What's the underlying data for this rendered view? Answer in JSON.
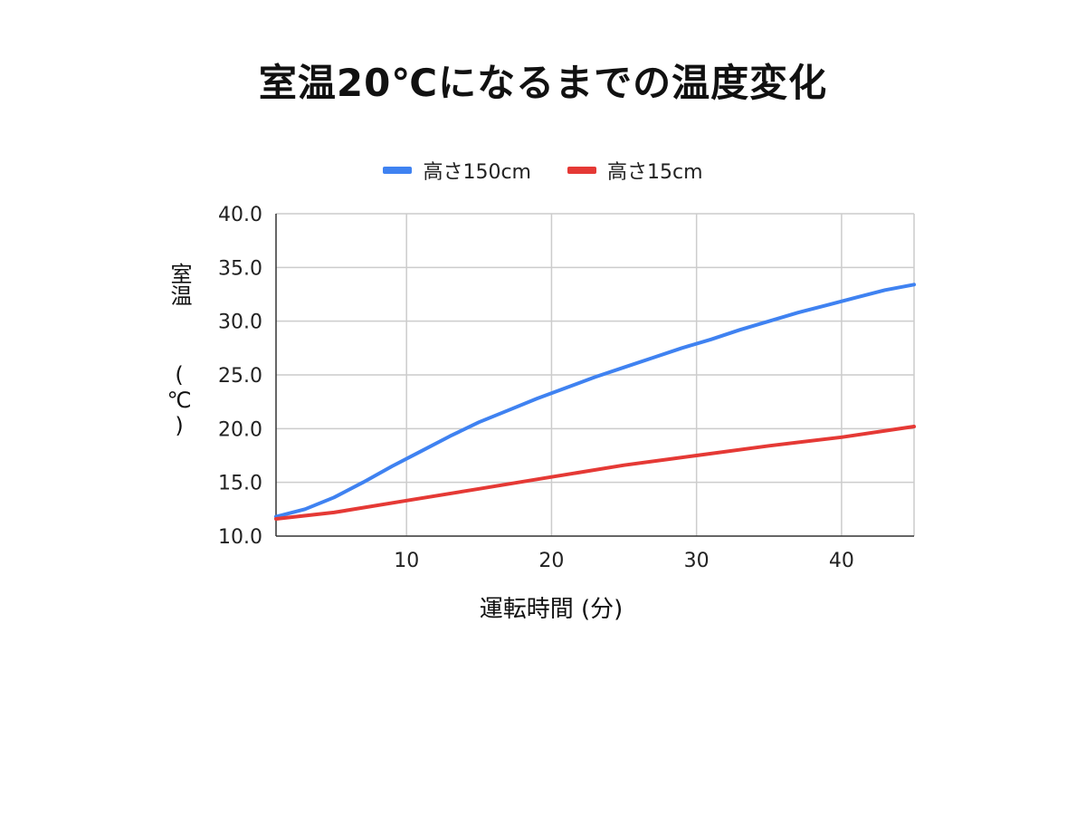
{
  "title": "室温20℃になるまでの温度変化",
  "chart_data": {
    "type": "line",
    "title": "室温20℃になるまでの温度変化",
    "xlabel": "運転時間 (分)",
    "ylabel": "室温",
    "ylabel_unit": "(℃)",
    "x_ticks": [
      "10",
      "20",
      "30",
      "40"
    ],
    "y_ticks": [
      "10.0",
      "15.0",
      "20.0",
      "25.0",
      "30.0",
      "35.0",
      "40.0"
    ],
    "highlight_y_tick": "20.0",
    "highlight_color": "#e53935",
    "xlim": [
      1,
      45
    ],
    "ylim": [
      10,
      40
    ],
    "grid": true,
    "legend_position": "top",
    "series": [
      {
        "name": "高さ150cm",
        "color": "#3f82f1",
        "x": [
          1,
          3,
          5,
          7,
          9,
          11,
          13,
          15,
          17,
          19,
          21,
          23,
          25,
          27,
          29,
          31,
          33,
          35,
          37,
          39,
          41,
          43,
          45
        ],
        "y": [
          11.8,
          12.5,
          13.6,
          15.0,
          16.5,
          17.9,
          19.3,
          20.6,
          21.7,
          22.8,
          23.8,
          24.8,
          25.7,
          26.6,
          27.5,
          28.3,
          29.2,
          30.0,
          30.8,
          31.5,
          32.2,
          32.9,
          33.4
        ]
      },
      {
        "name": "高さ15cm",
        "color": "#e53935",
        "x": [
          1,
          5,
          10,
          15,
          20,
          25,
          30,
          35,
          40,
          45
        ],
        "y": [
          11.6,
          12.2,
          13.3,
          14.4,
          15.5,
          16.6,
          17.5,
          18.4,
          19.2,
          20.2
        ]
      }
    ]
  }
}
